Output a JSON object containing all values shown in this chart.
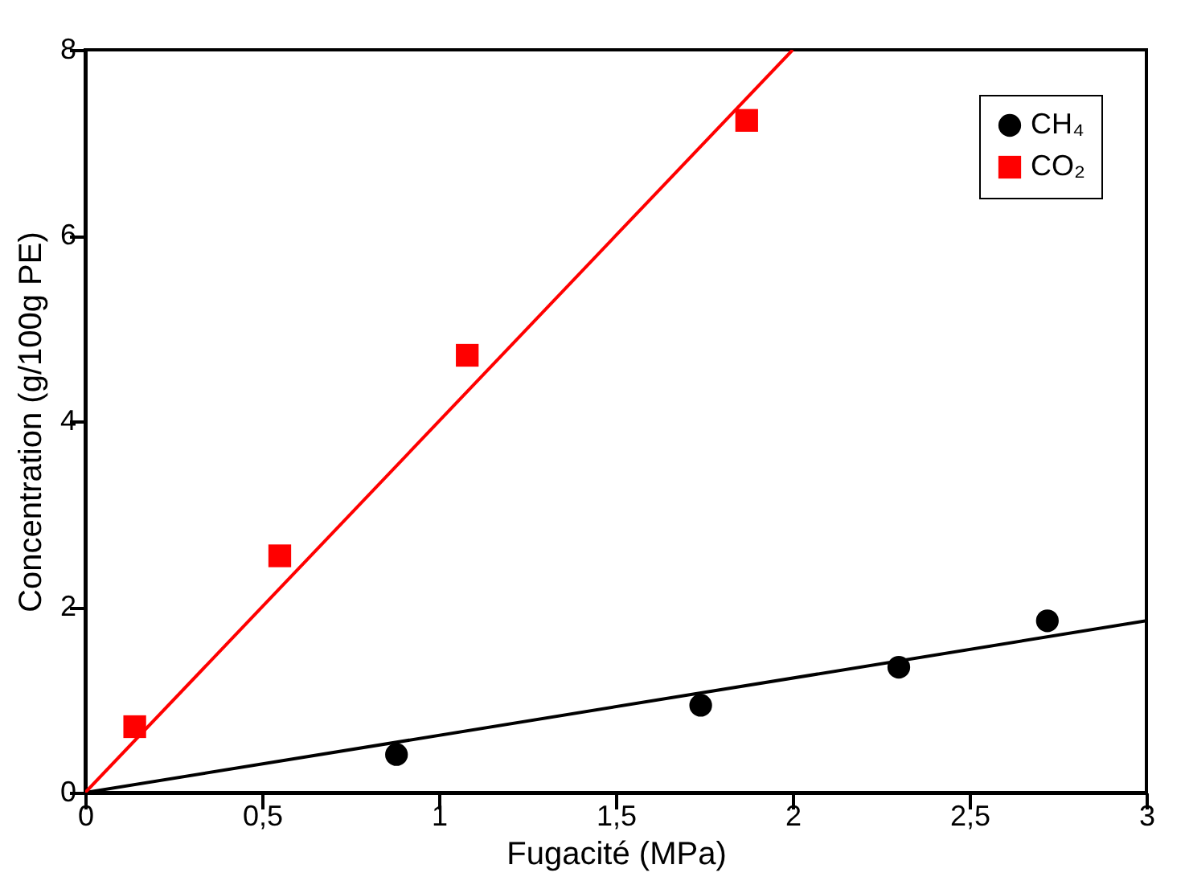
{
  "chart_data": {
    "type": "scatter",
    "xlabel": "Fugacité (MPa)",
    "ylabel": "Concentration (g/100g PE)",
    "xlim": [
      0,
      3
    ],
    "ylim": [
      0,
      8
    ],
    "xticks": [
      0,
      {
        "value": 0.5,
        "label": "0,5"
      },
      1,
      {
        "value": 1.5,
        "label": "1,5"
      },
      2,
      {
        "value": 2.5,
        "label": "2,5"
      },
      3
    ],
    "yticks": [
      0,
      2,
      4,
      6,
      8
    ],
    "legend": "top right",
    "series": [
      {
        "name": "CH₄",
        "marker": "circle",
        "color": "#000000",
        "x": [
          0.88,
          1.74,
          2.3,
          2.72
        ],
        "values": [
          0.41,
          0.94,
          1.35,
          1.85
        ]
      },
      {
        "name": "CO₂",
        "marker": "square",
        "color": "#ff0000",
        "x": [
          0.14,
          0.55,
          1.08,
          1.87
        ],
        "values": [
          0.71,
          2.55,
          4.71,
          7.24
        ]
      },
      {
        "type": "line",
        "line_style": "solid",
        "color": "#000000",
        "x": [
          0,
          3
        ],
        "values": [
          0,
          1.85
        ]
      },
      {
        "type": "line",
        "line_style": "solid",
        "color": "#ff0000",
        "x": [
          0,
          2
        ],
        "values": [
          0,
          8
        ]
      }
    ]
  }
}
